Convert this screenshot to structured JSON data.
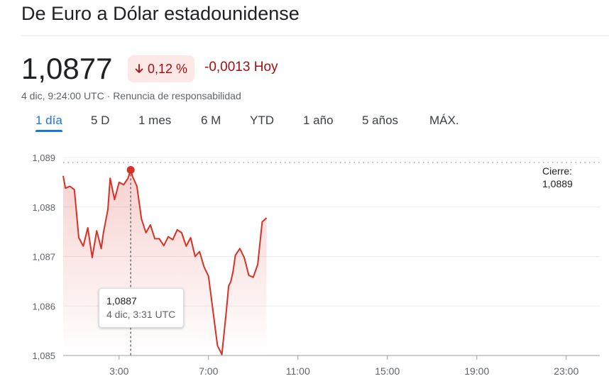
{
  "header": {
    "title": "De Euro a Dólar estadounidense"
  },
  "quote": {
    "price": "1,0877",
    "percent_change": "0,12 %",
    "abs_change": "-0,0013 Hoy",
    "timestamp": "4 dic, 9:24:00 UTC",
    "separator": "·",
    "disclaimer": "Renuncia de responsabilidad",
    "arrow_icon": "arrow-down-icon",
    "down_color": "#a50e0e",
    "down_bg": "#fce8e6"
  },
  "tabs": [
    {
      "label": "1 día",
      "active": true
    },
    {
      "label": "5 D",
      "active": false
    },
    {
      "label": "1 mes",
      "active": false
    },
    {
      "label": "6 M",
      "active": false
    },
    {
      "label": "YTD",
      "active": false
    },
    {
      "label": "1 año",
      "active": false
    },
    {
      "label": "5 años",
      "active": false
    },
    {
      "label": "MÁX.",
      "active": false
    }
  ],
  "tooltip": {
    "value": "1,0887",
    "time": "4 dic, 3:31 UTC"
  },
  "close": {
    "label": "Cierre:",
    "value": "1,0889"
  },
  "chart_data": {
    "type": "line",
    "series": [
      {
        "x": [
          0.5,
          0.6,
          0.8,
          1.0,
          1.2,
          1.4,
          1.6,
          1.8,
          2.0,
          2.2,
          2.3,
          2.5,
          2.6,
          2.8,
          3.0,
          3.2,
          3.4,
          3.52,
          3.6,
          3.8,
          4.0,
          4.2,
          4.4,
          4.6,
          4.8,
          5.0,
          5.2,
          5.4,
          5.6,
          5.8,
          6.0,
          6.2,
          6.4,
          6.6,
          6.8,
          7.0,
          7.2,
          7.4,
          7.6,
          7.8,
          7.9,
          8.0,
          8.1,
          8.2,
          8.4,
          8.6,
          8.8,
          9.0,
          9.2,
          9.4,
          9.6
        ],
        "y": [
          1.08863,
          1.08838,
          1.08842,
          1.08835,
          1.08738,
          1.08721,
          1.08758,
          1.08698,
          1.08752,
          1.08716,
          1.08748,
          1.08795,
          1.08858,
          1.08815,
          1.0885,
          1.08845,
          1.08858,
          1.08875,
          1.08862,
          1.08842,
          1.08776,
          1.08748,
          1.08764,
          1.08736,
          1.08736,
          1.08722,
          1.0874,
          1.08734,
          1.08754,
          1.08748,
          1.08721,
          1.08738,
          1.087,
          1.0871,
          1.08679,
          1.0866,
          1.0859,
          1.0852,
          1.08502,
          1.0859,
          1.0864,
          1.0865,
          1.0867,
          1.08702,
          1.08716,
          1.08698,
          1.08662,
          1.08658,
          1.08684,
          1.0877,
          1.08778
        ]
      }
    ],
    "x_ticks": [
      "3:00",
      "7:00",
      "11:00",
      "15:00",
      "19:00",
      "23:00"
    ],
    "x_tick_values": [
      3,
      7,
      11,
      15,
      19,
      23
    ],
    "y_ticks": [
      "1,085",
      "1,086",
      "1,087",
      "1,088",
      "1,089"
    ],
    "y_tick_values": [
      1.085,
      1.086,
      1.087,
      1.088,
      1.089
    ],
    "xlim": [
      0.5,
      24.5
    ],
    "ylim": [
      1.085,
      1.089
    ],
    "previous_close": 1.0889,
    "highlight_point": {
      "x": 3.52,
      "y": 1.08875
    },
    "line_color": "#d93025",
    "grid": true
  }
}
